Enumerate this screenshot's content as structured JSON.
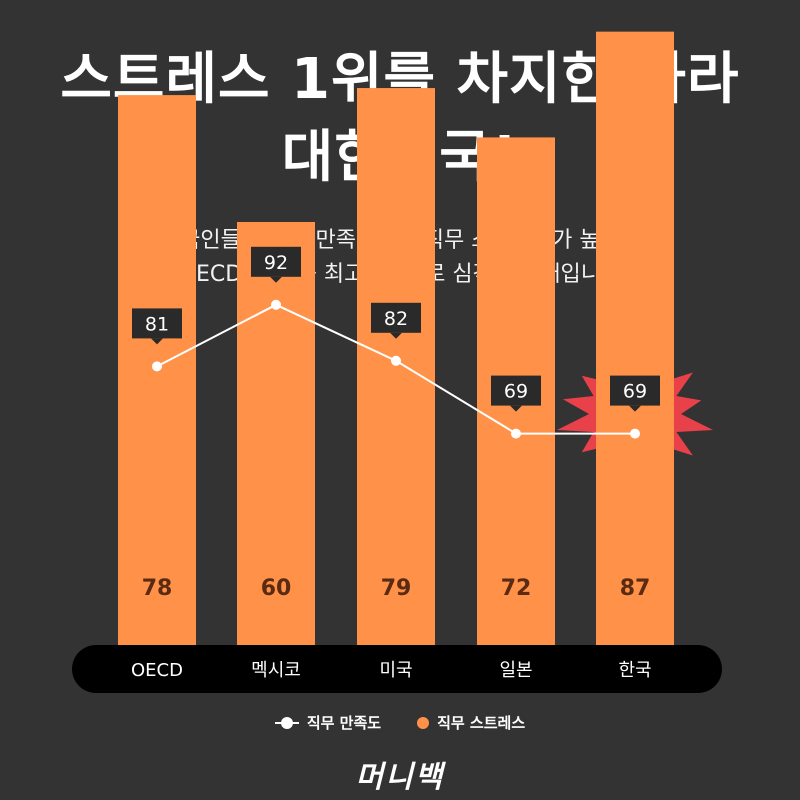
{
  "title_line1": "스트레스 1위를 차지한 나라",
  "title_line2": "대한민국!",
  "subtitle_line1": "한국인들은 직무 만족도보다 직무 스트레스가 높으며",
  "subtitle_line2": "OECD 국가 중 최고수준으로 심각한 상태입니다",
  "colors": {
    "bar": "#FF9248",
    "line": "#FFFFFF",
    "burst_outer": "#E8414A",
    "burst_inner": "#FFFFFF",
    "axis_band": "#000000",
    "label_box": "#2A2A2A",
    "bar_value_text": "#5A2A12"
  },
  "chart_data": {
    "type": "bar",
    "categories": [
      "OECD",
      "멕시코",
      "미국",
      "일본",
      "한국"
    ],
    "series": [
      {
        "name": "직무 스트레스",
        "type": "bar",
        "values": [
          78,
          60,
          79,
          72,
          87
        ]
      },
      {
        "name": "직무 만족도",
        "type": "line",
        "values": [
          81,
          92,
          82,
          69,
          69
        ]
      }
    ],
    "highlight": "한국",
    "legend_position": "bottom"
  },
  "legend": {
    "line_label": "직무 만족도",
    "bar_label": "직무 스트레스"
  },
  "brand": "머니백"
}
